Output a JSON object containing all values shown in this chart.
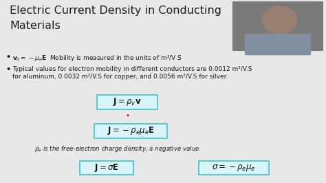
{
  "title_line1": "Electric Current Density in Conducting",
  "title_line2": "Materials",
  "title_fontsize": 11.5,
  "title_color": "#1a1a1a",
  "bg_color": "#e8e8e8",
  "text_color": "#1a1a1a",
  "eq1": "$\\mathbf{J} = \\rho_v\\mathbf{v}$",
  "eq2": "$\\mathbf{J} = -\\rho_e\\mu_e\\mathbf{E}$",
  "eq3": "$\\mathbf{J} = \\sigma\\mathbf{E}$",
  "eq4": "$\\sigma = -\\rho_e\\mu_e$",
  "rho_note": "$\\rho_e$ is the free-electron charge density, a negative value.",
  "box_edgecolor": "#40c0d0",
  "box_facecolor": "#d8f4f8",
  "red_dot_color": "#cc0000",
  "webcam_bg": "#7a7a7a",
  "webcam_skin": "#9a8070",
  "webcam_shirt": "#8090a0",
  "bullet1_math": "$\\mathbf{v}_d = -\\mu_e\\mathbf{E}$",
  "bullet1_rest": "  Mobility is measured in the units of m²/V.S",
  "bullet2a": "Typical values for electron mobility in different conductors are 0.0012 m²/V.S",
  "bullet2b": "for aluminum, 0.0032 m²/V.S for copper, and 0.0056 m²/V.S for silver.",
  "bullet_fontsize": 6.5,
  "note_fontsize": 6.2,
  "eq_fontsize": 8.5
}
